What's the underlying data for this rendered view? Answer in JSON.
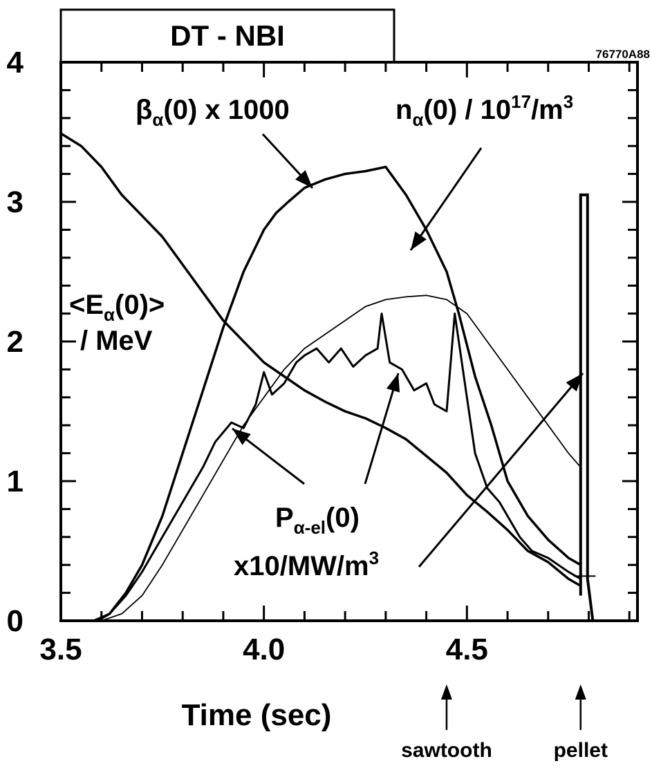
{
  "chart_data": {
    "type": "line",
    "title": "DT - NBI",
    "figure_code": "76770A88",
    "xlabel": "Time (sec)",
    "ylabel": "",
    "xlim": [
      3.5,
      4.92
    ],
    "ylim": [
      0,
      4
    ],
    "x_ticks": [
      "3.5",
      "4.0",
      "4.5"
    ],
    "y_ticks": [
      "0",
      "1",
      "2",
      "3",
      "4"
    ],
    "series": [
      {
        "id": "beta",
        "label_main": "β",
        "label_sub": "α",
        "label_rest": "(0) x 1000",
        "stroke": 3.5,
        "points": [
          [
            3.59,
            0.0
          ],
          [
            3.62,
            0.05
          ],
          [
            3.66,
            0.2
          ],
          [
            3.7,
            0.4
          ],
          [
            3.75,
            0.75
          ],
          [
            3.8,
            1.2
          ],
          [
            3.85,
            1.65
          ],
          [
            3.9,
            2.1
          ],
          [
            3.95,
            2.5
          ],
          [
            4.0,
            2.8
          ],
          [
            4.03,
            2.92
          ],
          [
            4.06,
            3.0
          ],
          [
            4.1,
            3.1
          ],
          [
            4.15,
            3.16
          ],
          [
            4.2,
            3.2
          ],
          [
            4.25,
            3.22
          ],
          [
            4.3,
            3.25
          ],
          [
            4.35,
            3.05
          ],
          [
            4.4,
            2.8
          ],
          [
            4.45,
            2.5
          ],
          [
            4.48,
            2.2
          ],
          [
            4.52,
            1.75
          ],
          [
            4.56,
            1.4
          ],
          [
            4.6,
            1.0
          ],
          [
            4.65,
            0.75
          ],
          [
            4.7,
            0.58
          ],
          [
            4.75,
            0.45
          ],
          [
            4.78,
            0.4
          ]
        ]
      },
      {
        "id": "n_alpha",
        "label_main": "n",
        "label_sub": "α",
        "label_rest": "(0) / 10",
        "label_sup": "17",
        "label_tail": "/m",
        "label_sup2": "3",
        "stroke": 1.8,
        "points": [
          [
            3.6,
            0.0
          ],
          [
            3.65,
            0.05
          ],
          [
            3.7,
            0.18
          ],
          [
            3.75,
            0.4
          ],
          [
            3.8,
            0.65
          ],
          [
            3.85,
            0.9
          ],
          [
            3.9,
            1.15
          ],
          [
            3.95,
            1.4
          ],
          [
            4.0,
            1.6
          ],
          [
            4.05,
            1.8
          ],
          [
            4.1,
            1.95
          ],
          [
            4.15,
            2.05
          ],
          [
            4.2,
            2.15
          ],
          [
            4.25,
            2.25
          ],
          [
            4.3,
            2.3
          ],
          [
            4.35,
            2.32
          ],
          [
            4.4,
            2.33
          ],
          [
            4.45,
            2.3
          ],
          [
            4.5,
            2.2
          ],
          [
            4.55,
            2.0
          ],
          [
            4.6,
            1.8
          ],
          [
            4.65,
            1.6
          ],
          [
            4.7,
            1.4
          ],
          [
            4.75,
            1.2
          ],
          [
            4.78,
            1.1
          ]
        ]
      },
      {
        "id": "E_alpha",
        "label_main": "<E",
        "label_sub": "α",
        "label_rest": "(0)>",
        "label_line2": "/ MeV",
        "stroke": 3.5,
        "points": [
          [
            3.5,
            3.49
          ],
          [
            3.55,
            3.4
          ],
          [
            3.6,
            3.25
          ],
          [
            3.65,
            3.05
          ],
          [
            3.7,
            2.9
          ],
          [
            3.75,
            2.75
          ],
          [
            3.8,
            2.55
          ],
          [
            3.85,
            2.35
          ],
          [
            3.9,
            2.15
          ],
          [
            3.95,
            2.0
          ],
          [
            4.0,
            1.85
          ],
          [
            4.05,
            1.75
          ],
          [
            4.1,
            1.65
          ],
          [
            4.15,
            1.57
          ],
          [
            4.2,
            1.5
          ],
          [
            4.25,
            1.45
          ],
          [
            4.3,
            1.38
          ],
          [
            4.35,
            1.3
          ],
          [
            4.4,
            1.18
          ],
          [
            4.45,
            1.06
          ],
          [
            4.5,
            0.9
          ],
          [
            4.55,
            0.78
          ],
          [
            4.6,
            0.65
          ],
          [
            4.65,
            0.5
          ],
          [
            4.7,
            0.42
          ],
          [
            4.75,
            0.3
          ],
          [
            4.78,
            0.25
          ]
        ]
      },
      {
        "id": "P_alpha_el",
        "label_main": "P",
        "label_sub": "α-el",
        "label_rest": "(0)",
        "label_line2": "x10/MW/m",
        "label_sup2": "3",
        "stroke": 3,
        "points": [
          [
            3.58,
            0.0
          ],
          [
            3.62,
            0.05
          ],
          [
            3.66,
            0.18
          ],
          [
            3.7,
            0.35
          ],
          [
            3.75,
            0.6
          ],
          [
            3.8,
            0.85
          ],
          [
            3.85,
            1.1
          ],
          [
            3.88,
            1.28
          ],
          [
            3.92,
            1.42
          ],
          [
            3.95,
            1.38
          ],
          [
            3.98,
            1.55
          ],
          [
            4.0,
            1.78
          ],
          [
            4.02,
            1.62
          ],
          [
            4.05,
            1.7
          ],
          [
            4.08,
            1.85
          ],
          [
            4.1,
            1.9
          ],
          [
            4.13,
            1.95
          ],
          [
            4.16,
            1.85
          ],
          [
            4.19,
            1.95
          ],
          [
            4.22,
            1.82
          ],
          [
            4.25,
            1.9
          ],
          [
            4.28,
            1.95
          ],
          [
            4.29,
            2.2
          ],
          [
            4.31,
            1.85
          ],
          [
            4.34,
            1.8
          ],
          [
            4.37,
            1.65
          ],
          [
            4.4,
            1.7
          ],
          [
            4.42,
            1.55
          ],
          [
            4.45,
            1.5
          ],
          [
            4.47,
            2.2
          ],
          [
            4.5,
            1.6
          ],
          [
            4.52,
            1.2
          ],
          [
            4.55,
            0.95
          ],
          [
            4.58,
            0.85
          ],
          [
            4.6,
            0.75
          ],
          [
            4.63,
            0.6
          ],
          [
            4.66,
            0.5
          ],
          [
            4.7,
            0.45
          ],
          [
            4.75,
            0.35
          ],
          [
            4.78,
            0.3
          ]
        ]
      }
    ],
    "pellet_spike": {
      "x": 4.78,
      "y_low": 0.18,
      "y_high": 3.05,
      "x_end": 4.81
    },
    "markers": [
      {
        "text": "sawtooth",
        "x": 4.45
      },
      {
        "text": "pellet",
        "x": 4.78
      }
    ]
  }
}
